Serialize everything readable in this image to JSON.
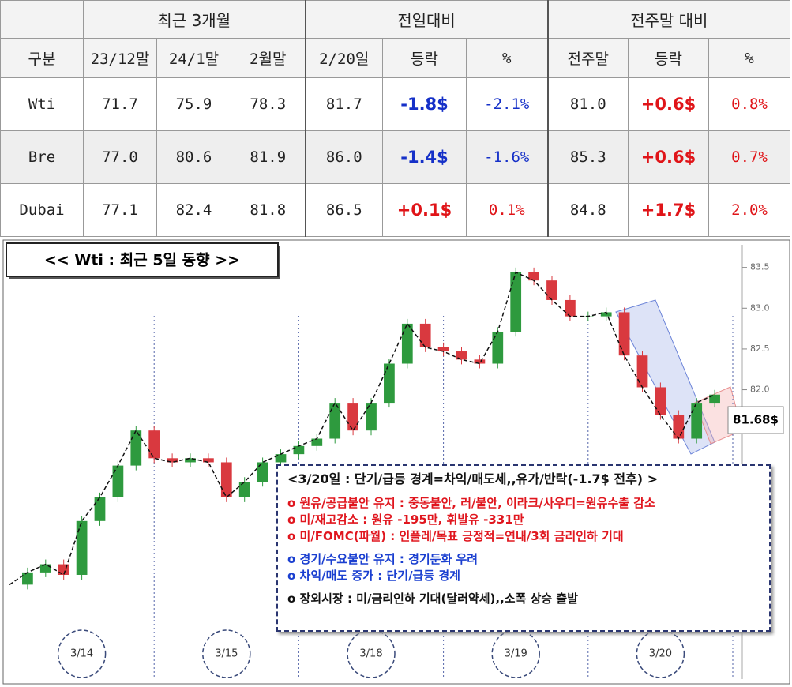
{
  "table": {
    "group_headers": [
      "최근 3개월",
      "전일대비",
      "전주말 대비"
    ],
    "columns": [
      "구분",
      "23/12말",
      "24/1말",
      "2월말",
      "2/20일",
      "등락",
      "%",
      "전주말",
      "등락",
      "%"
    ],
    "rows": [
      [
        "Wti",
        "71.7",
        "75.9",
        "78.3",
        "81.7",
        "-1.8$",
        "-2.1%",
        "81.0",
        "+0.6$",
        "0.8%"
      ],
      [
        "Bre",
        "77.0",
        "80.6",
        "81.9",
        "86.0",
        "-1.4$",
        "-1.6%",
        "85.3",
        "+0.6$",
        "0.7%"
      ],
      [
        "Dubai",
        "77.1",
        "82.4",
        "81.8",
        "86.5",
        "+0.1$",
        "0.1%",
        "84.8",
        "+1.7$",
        "2.0%"
      ]
    ]
  },
  "chart_data": {
    "type": "candlestick",
    "title": "<< Wti : 최근 5일 동향 >>",
    "day_labels": [
      "3/14",
      "3/15",
      "3/18",
      "3/19",
      "3/20"
    ],
    "values": [
      79.61,
      79.76,
      79.86,
      79.73,
      80.39,
      80.68,
      81.07,
      81.5,
      81.16,
      81.11,
      81.16,
      81.11,
      80.68,
      80.87,
      81.11,
      81.21,
      81.31,
      81.4,
      81.84,
      81.5,
      81.84,
      82.32,
      82.81,
      82.52,
      82.47,
      82.37,
      82.32,
      82.71,
      83.44,
      83.34,
      83.1,
      82.9,
      82.9,
      82.95,
      82.42,
      82.03,
      81.69,
      81.4,
      81.84,
      81.94
    ],
    "ylim": [
      78.5,
      83.7
    ],
    "yticks": [
      {
        "value": 82,
        "label": "82.0"
      },
      {
        "value": 82.5,
        "label": "82.5"
      },
      {
        "value": 83,
        "label": "83.0"
      },
      {
        "value": 83.5,
        "label": "83.5"
      }
    ],
    "up_color": "#2e9a3e",
    "down_color": "#d9393f",
    "last_price_label": "81.68$",
    "note": {
      "heading": "<3/20일 : 단기/급등 경계=차익/매도세,,유가/반락(-1.7$ 전후) >",
      "groups": [
        {
          "color": "#e0161e",
          "lines": [
            "o 원유/공급불안 유지 : 중동불안, 러/불안, 이라크/사우디=원유수출 감소",
            "o 미/재고감소 : 원유 -195만, 휘발유 -331만",
            "o 미/FOMC(파월) : 인플레/목표 긍정적=연내/3회 금리인하 기대"
          ]
        },
        {
          "color": "#1a3fd0",
          "lines": [
            "o 경기/수요불안 유지 : 경기둔화 우려",
            "o 차익/매도 증가 : 단기/급등 경계"
          ]
        },
        {
          "color": "#111111",
          "lines": [
            "o 장외시장 : 미/금리인하 기대(달러약세),,소폭 상승 출발"
          ]
        }
      ]
    }
  }
}
